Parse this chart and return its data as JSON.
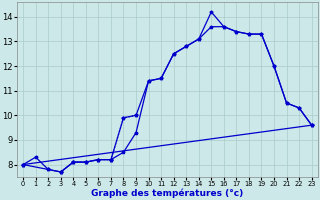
{
  "xlabel": "Graphe des températures (°c)",
  "background_color": "#cce8e8",
  "grid_color": "#aacccc",
  "line_color": "#0000cc",
  "xlim": [
    -0.5,
    23.5
  ],
  "ylim": [
    7.5,
    14.6
  ],
  "xticks": [
    0,
    1,
    2,
    3,
    4,
    5,
    6,
    7,
    8,
    9,
    10,
    11,
    12,
    13,
    14,
    15,
    16,
    17,
    18,
    19,
    20,
    21,
    22,
    23
  ],
  "yticks": [
    8,
    9,
    10,
    11,
    12,
    13,
    14
  ],
  "line1_x": [
    0,
    1,
    2,
    3,
    4,
    5,
    6,
    7,
    8,
    9,
    10,
    11,
    12,
    13,
    14,
    15,
    16,
    17,
    18,
    19,
    20,
    21,
    22,
    23
  ],
  "line1_y": [
    8.0,
    8.3,
    7.8,
    7.7,
    8.1,
    8.1,
    8.2,
    8.2,
    8.5,
    9.3,
    11.4,
    11.5,
    12.5,
    12.8,
    13.1,
    14.2,
    13.6,
    13.4,
    13.3,
    13.3,
    12.0,
    10.5,
    10.3,
    9.6
  ],
  "line2_x": [
    0,
    2,
    3,
    4,
    5,
    6,
    7,
    8,
    9,
    10,
    11,
    12,
    13,
    14,
    15,
    16,
    17,
    18,
    19,
    20,
    21,
    22,
    23
  ],
  "line2_y": [
    8.0,
    7.8,
    7.7,
    8.1,
    8.1,
    8.2,
    8.2,
    9.9,
    10.0,
    11.4,
    11.5,
    12.5,
    12.8,
    13.1,
    13.6,
    13.6,
    13.4,
    13.3,
    13.3,
    12.0,
    10.5,
    10.3,
    9.6
  ],
  "line3_x": [
    0,
    23
  ],
  "line3_y": [
    8.0,
    9.6
  ],
  "dotted_x": [
    3,
    4,
    5,
    6,
    7,
    8,
    9
  ],
  "dotted_y": [
    7.7,
    8.1,
    8.1,
    8.2,
    8.2,
    9.9,
    10.0
  ]
}
